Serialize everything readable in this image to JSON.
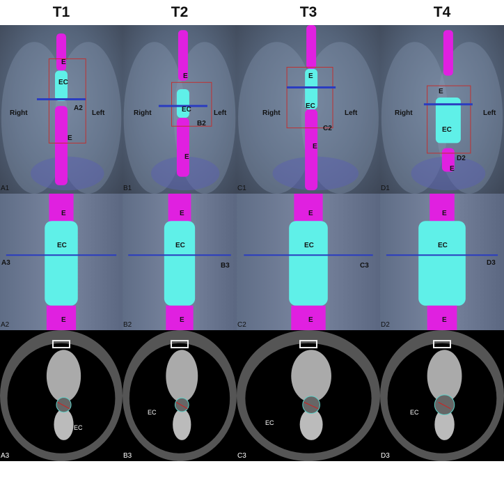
{
  "columns": [
    "T1",
    "T2",
    "T3",
    "T4"
  ],
  "panels": {
    "A1": {
      "id": "A1",
      "E_top": "E",
      "EC": "EC",
      "marker": "A2",
      "right": "Right",
      "left": "Left",
      "E_bottom": "E"
    },
    "B1": {
      "id": "B1",
      "E_top": "E",
      "EC": "EC",
      "marker": "B2",
      "right": "Right",
      "left": "Left",
      "E_bottom": "E"
    },
    "C1": {
      "id": "C1",
      "E_top": "E",
      "EC": "EC",
      "marker": "C2",
      "right": "Right",
      "left": "Left",
      "E_bottom": "E"
    },
    "D1": {
      "id": "D1",
      "E_top": "E",
      "EC": "EC",
      "marker": "D2",
      "right": "Right",
      "left": "Left",
      "E_bottom": "E"
    },
    "A2": {
      "id": "A2",
      "E_top": "E",
      "EC": "EC",
      "marker": "A3",
      "E_bottom": "E"
    },
    "B2": {
      "id": "B2",
      "E_top": "E",
      "EC": "EC",
      "marker": "B3",
      "E_bottom": "E"
    },
    "C2": {
      "id": "C2",
      "E_top": "E",
      "EC": "EC",
      "marker": "C3",
      "E_bottom": "E"
    },
    "D2": {
      "id": "D2",
      "E_top": "E",
      "EC": "EC",
      "marker": "D3",
      "E_bottom": "E"
    },
    "A3": {
      "id": "A3",
      "EC": "EC"
    },
    "B3": {
      "id": "B3",
      "EC": "EC"
    },
    "C3": {
      "id": "C3",
      "EC": "EC"
    },
    "D3": {
      "id": "D3",
      "EC": "EC"
    }
  },
  "colors": {
    "esophagus": "#e020e0",
    "cancer": "#5ff0e8",
    "plane": "#2a3cc0",
    "box": "#c03030"
  }
}
